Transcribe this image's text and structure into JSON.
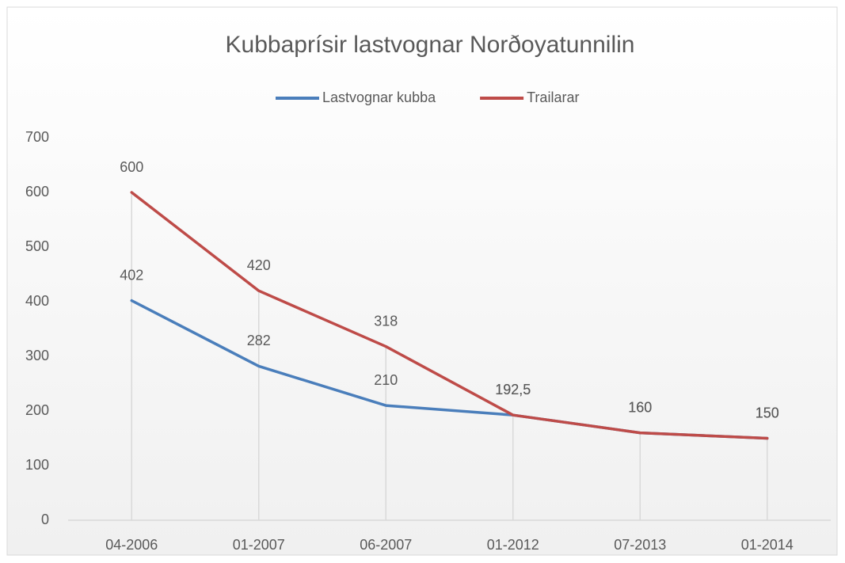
{
  "chart_data": {
    "type": "line",
    "title": "Kubbaprísir lastvognar Norðoyatunnilin",
    "categories": [
      "04-2006",
      "01-2007",
      "06-2007",
      "01-2012",
      "07-2013",
      "01-2014"
    ],
    "series": [
      {
        "name": "Lastvognar kubba",
        "color": "#4a7ebb",
        "values": [
          402,
          282,
          210,
          192.5,
          160,
          150
        ],
        "value_labels": [
          "402",
          "282",
          "210",
          "192,5",
          "160",
          "150"
        ]
      },
      {
        "name": "Trailarar",
        "color": "#be4b48",
        "values": [
          600,
          420,
          318,
          192.5,
          160,
          150
        ],
        "value_labels": [
          "600",
          "420",
          "318",
          "192,5",
          "160",
          "150"
        ]
      }
    ],
    "ylim": [
      0,
      700
    ],
    "yticks": [
      0,
      100,
      200,
      300,
      400,
      500,
      600,
      700
    ],
    "legend": "top",
    "grid": false
  }
}
